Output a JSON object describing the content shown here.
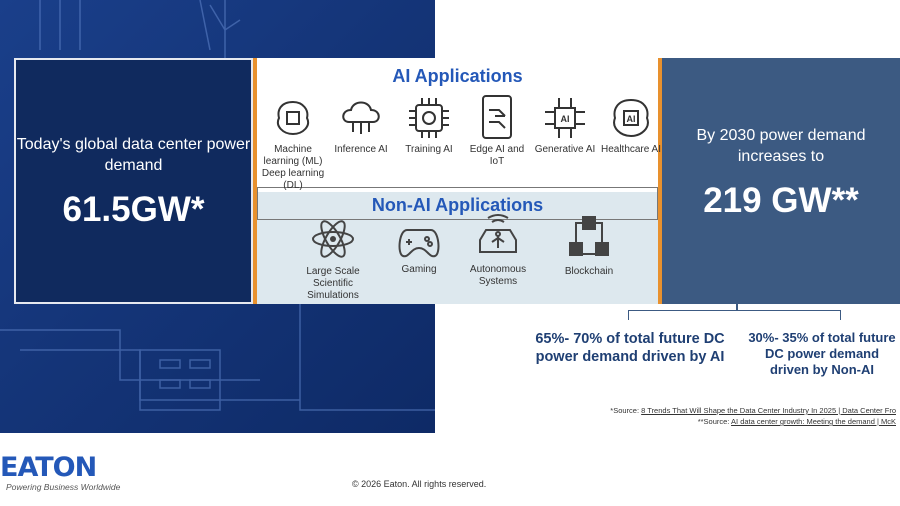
{
  "left": {
    "label": "Today's global data center power demand",
    "value": "61.5GW*"
  },
  "ai": {
    "title": "AI Applications",
    "items": [
      {
        "label": "Machine learning (ML) Deep learning (DL)",
        "icon": "brain-chip-icon"
      },
      {
        "label": "Inference AI",
        "icon": "cloud-network-icon"
      },
      {
        "label": "Training AI",
        "icon": "chip-gear-icon"
      },
      {
        "label": "Edge AI and IoT",
        "icon": "phone-circuit-icon"
      },
      {
        "label": "Generative AI",
        "icon": "ai-chip-icon"
      },
      {
        "label": "Healthcare AI",
        "icon": "ai-brain-icon"
      }
    ]
  },
  "nonai": {
    "title": "Non-AI Applications",
    "items": [
      {
        "label": "Large Scale Scientific Simulations",
        "icon": "atom-icon"
      },
      {
        "label": "Gaming",
        "icon": "gamepad-icon"
      },
      {
        "label": "Autonomous Systems",
        "icon": "car-icon"
      },
      {
        "label": "Blockchain",
        "icon": "blocks-icon"
      }
    ]
  },
  "right": {
    "label": "By 2030 power demand increases to",
    "value": "219 GW**"
  },
  "stats": {
    "ai": "65%- 70% of total future DC power demand driven by AI",
    "nonai": "30%- 35% of total future DC power demand driven by Non-AI"
  },
  "sources": {
    "s1_prefix": "*Source: ",
    "s1_link": "8 Trends That Will Shape the Data Center Industry In 2025 | Data Center Fro",
    "s2_prefix": "**Source: ",
    "s2_link": "AI data center growth: Meeting the demand | McK"
  },
  "footer": {
    "logo": "EATON",
    "tagline": "Powering Business Worldwide",
    "copyright": "© 2026 Eaton. All rights reserved."
  },
  "colors": {
    "accent": "#e8912e",
    "navy": "#102a5e",
    "steel": "#3c5a82",
    "heading": "#2458b8"
  }
}
